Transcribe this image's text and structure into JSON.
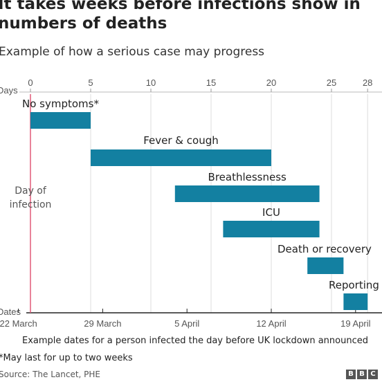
{
  "header": {
    "title": "It takes weeks before infections show in\nnumbers of deaths",
    "subtitle": "Example of how a serious case may progress"
  },
  "footer": {
    "footnote": "*May last for up to two weeks",
    "source": "Source: The Lancet, PHE",
    "logo_letters": [
      "B",
      "B",
      "C"
    ]
  },
  "chart_data": {
    "type": "bar",
    "orientation": "horizontal-gantt",
    "days_axis": {
      "label": "Days",
      "range": [
        0,
        28
      ],
      "ticks": [
        0,
        5,
        10,
        15,
        20,
        25,
        28
      ]
    },
    "dates_axis": {
      "label": "Dates",
      "ticks": [
        {
          "day": -1,
          "label": "22 March"
        },
        {
          "day": 6,
          "label": "29 March"
        },
        {
          "day": 13,
          "label": "5 April"
        },
        {
          "day": 20,
          "label": "12 April"
        },
        {
          "day": 27,
          "label": "19 April"
        }
      ],
      "caption": "Example dates for a person infected the day before UK lockdown announced"
    },
    "infection_marker": {
      "day": 0,
      "label": "Day of infection"
    },
    "grid": true,
    "bar_color": "#1380a1",
    "marker_color": "#e05a78",
    "stages": [
      {
        "label": "No symptoms*",
        "start": 0,
        "end": 5
      },
      {
        "label": "Fever & cough",
        "start": 5,
        "end": 20
      },
      {
        "label": "Breathlessness",
        "start": 12,
        "end": 24
      },
      {
        "label": "ICU",
        "start": 16,
        "end": 24
      },
      {
        "label": "Death or recovery",
        "start": 23,
        "end": 26
      },
      {
        "label": "Reporting",
        "start": 26,
        "end": 28
      }
    ]
  }
}
